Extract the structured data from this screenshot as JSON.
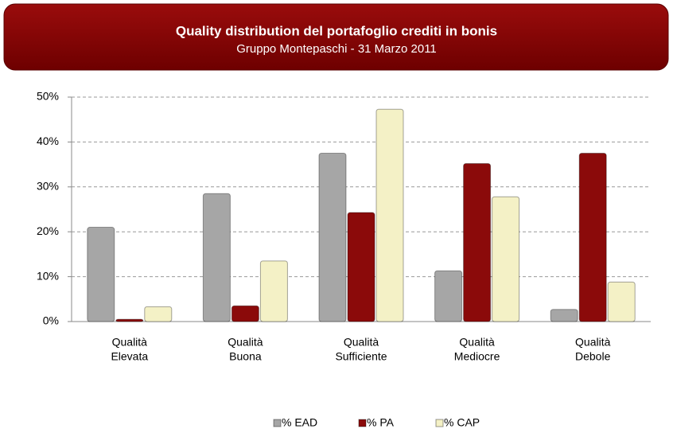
{
  "chart_data": {
    "type": "bar",
    "title": "Quality distribution del portafoglio crediti in bonis",
    "subtitle": "Gruppo Montepaschi - 31 Marzo 2011",
    "categories": [
      [
        "Qualità",
        "Elevata"
      ],
      [
        "Qualità",
        "Buona"
      ],
      [
        "Qualità",
        "Sufficiente"
      ],
      [
        "Qualità",
        "Mediocre"
      ],
      [
        "Qualità",
        "Debole"
      ]
    ],
    "series": [
      {
        "name": "% EAD",
        "color": "#a6a6a6",
        "values": [
          21,
          28.5,
          37.5,
          11.3,
          2.7
        ]
      },
      {
        "name": "% PA",
        "color": "#8b0a0a",
        "values": [
          0.5,
          3.5,
          24.3,
          35.2,
          37.5
        ]
      },
      {
        "name": "% CAP",
        "color": "#f4f1c6",
        "values": [
          3.3,
          13.5,
          47.3,
          27.8,
          8.8
        ]
      }
    ],
    "ylim": [
      0,
      50
    ],
    "yticks": [
      {
        "value": 0,
        "label": "0%"
      },
      {
        "value": 10,
        "label": "10%"
      },
      {
        "value": 20,
        "label": "20%"
      },
      {
        "value": 30,
        "label": "30%"
      },
      {
        "value": 40,
        "label": "40%"
      },
      {
        "value": 50,
        "label": "50%"
      }
    ],
    "grid": true,
    "legend": "bottom"
  }
}
